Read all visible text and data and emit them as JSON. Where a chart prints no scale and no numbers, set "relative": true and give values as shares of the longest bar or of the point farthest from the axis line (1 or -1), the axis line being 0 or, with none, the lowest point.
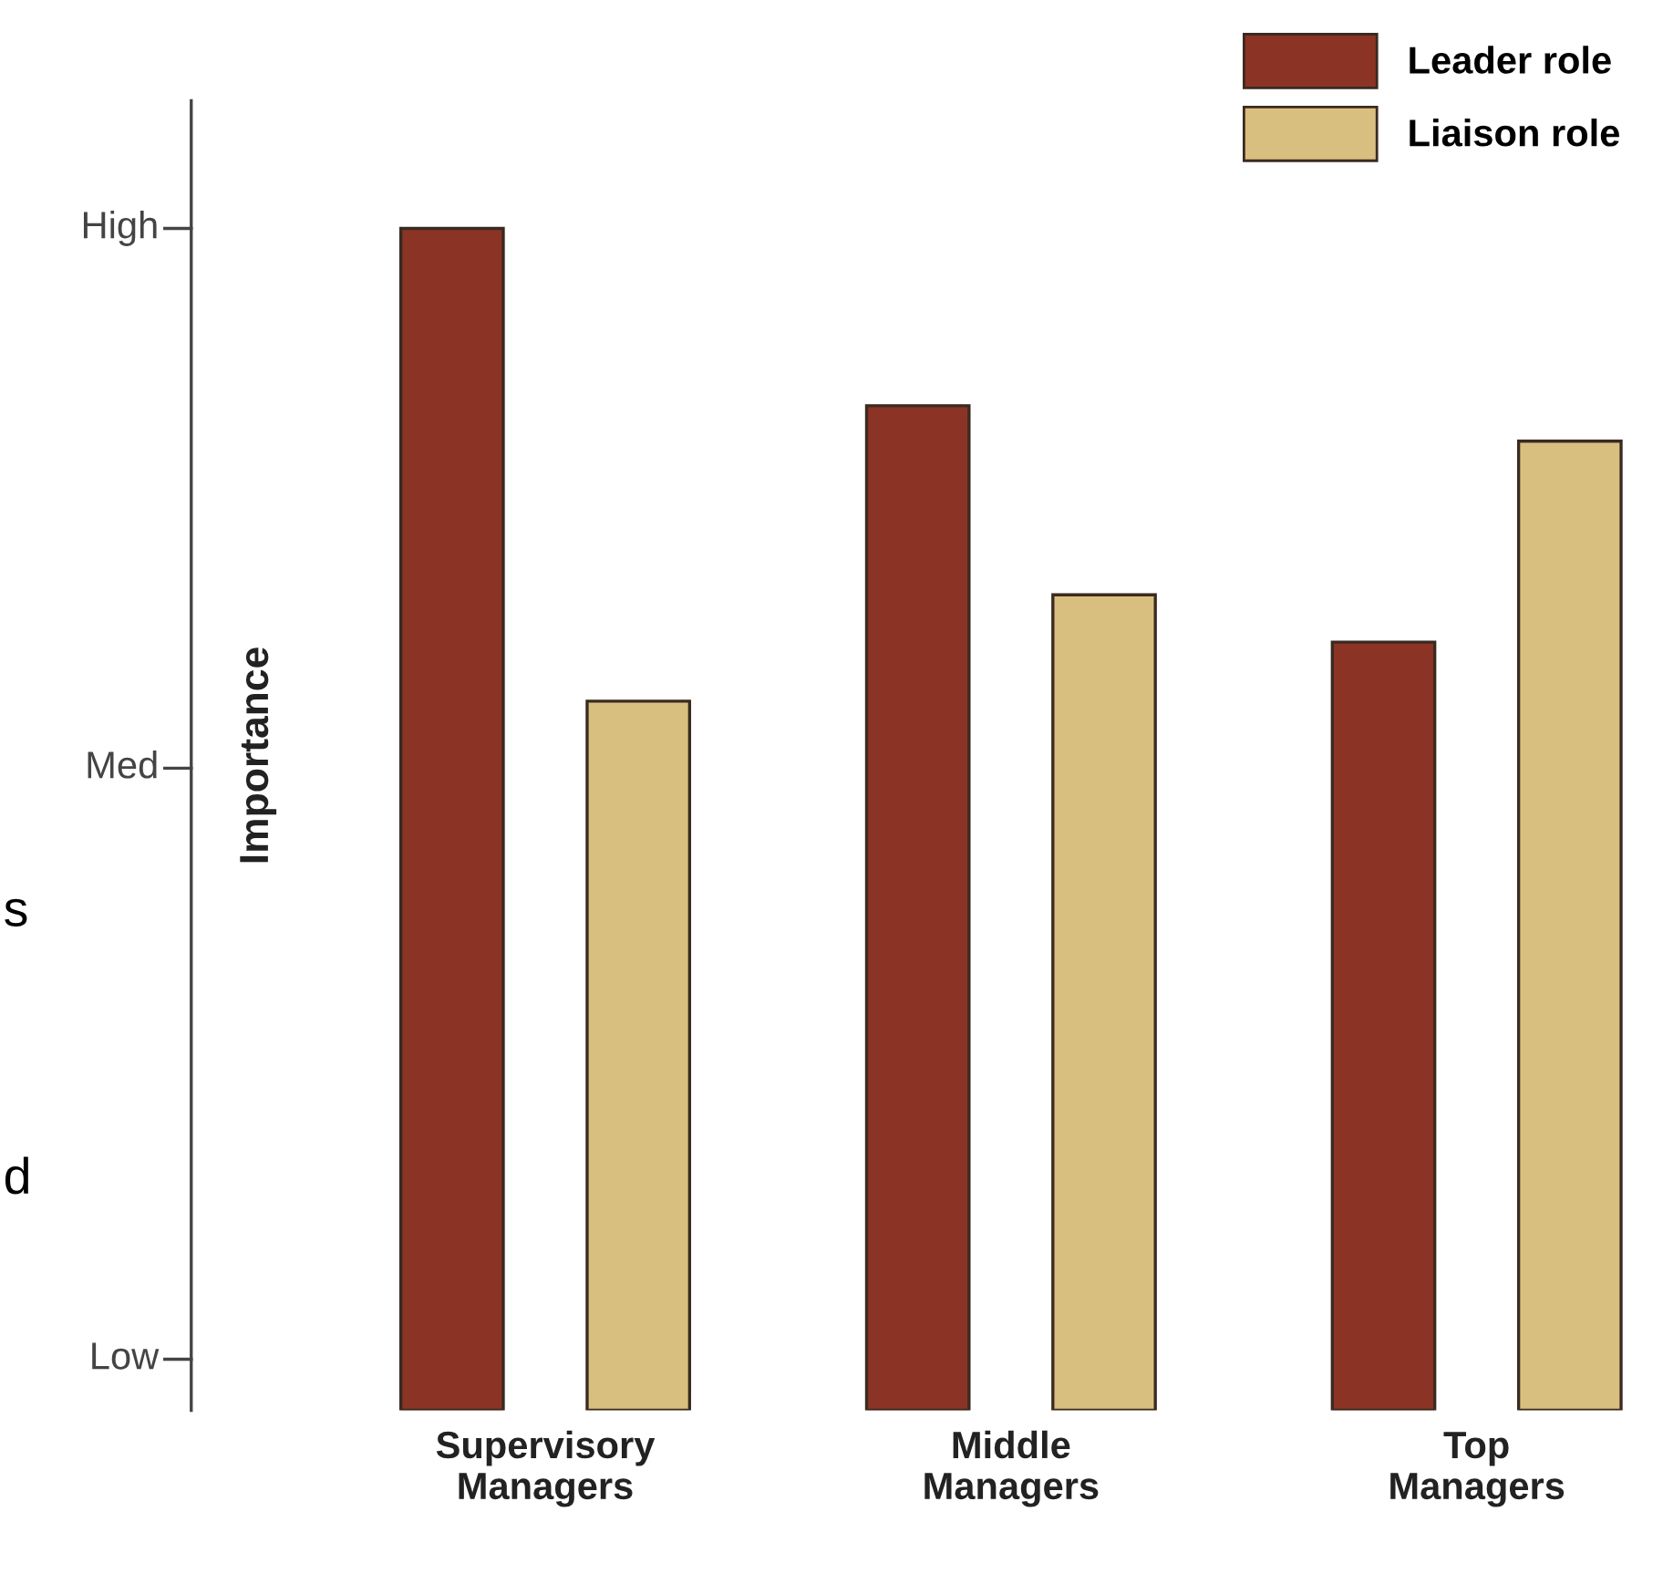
{
  "chart_data": {
    "type": "bar",
    "ylabel": "Importance",
    "relative": true,
    "categories": [
      "Supervisory\nManagers",
      "Middle\nManagers",
      "Top\nManagers"
    ],
    "series": [
      {
        "name": "Leader role",
        "color": "#8b3426",
        "values": [
          1,
          0.85,
          0.65
        ]
      },
      {
        "name": "Liaison role",
        "color": "#d9bf7f",
        "values": [
          0.6,
          0.69,
          0.82
        ]
      }
    ],
    "grid": false,
    "legend": "top right",
    "annotations": [
      "High",
      "Med",
      "Low",
      "s",
      "d"
    ]
  }
}
